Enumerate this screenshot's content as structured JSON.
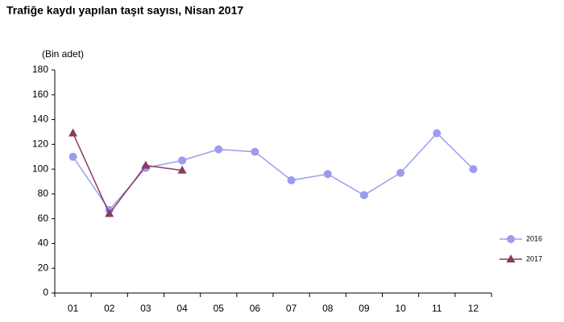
{
  "chart_data": {
    "type": "line",
    "title": "Trafiğe kaydı yapılan taşıt sayısı, Nisan 2017",
    "y_label": "(Bin adet)",
    "categories": [
      "01",
      "02",
      "03",
      "04",
      "05",
      "06",
      "07",
      "08",
      "09",
      "10",
      "11",
      "12"
    ],
    "series": [
      {
        "name": "2016",
        "color": "#9b9bef",
        "marker": "circle",
        "values": [
          110,
          67,
          101,
          107,
          116,
          114,
          91,
          96,
          79,
          97,
          129,
          100
        ]
      },
      {
        "name": "2017",
        "color": "#8b3a62",
        "marker": "triangle",
        "values": [
          129,
          64,
          103,
          99,
          null,
          null,
          null,
          null,
          null,
          null,
          null,
          null
        ]
      }
    ],
    "ylim": [
      0,
      180
    ],
    "yticks": [
      0,
      20,
      40,
      60,
      80,
      100,
      120,
      140,
      160,
      180
    ],
    "grid": false,
    "legend": "right"
  }
}
